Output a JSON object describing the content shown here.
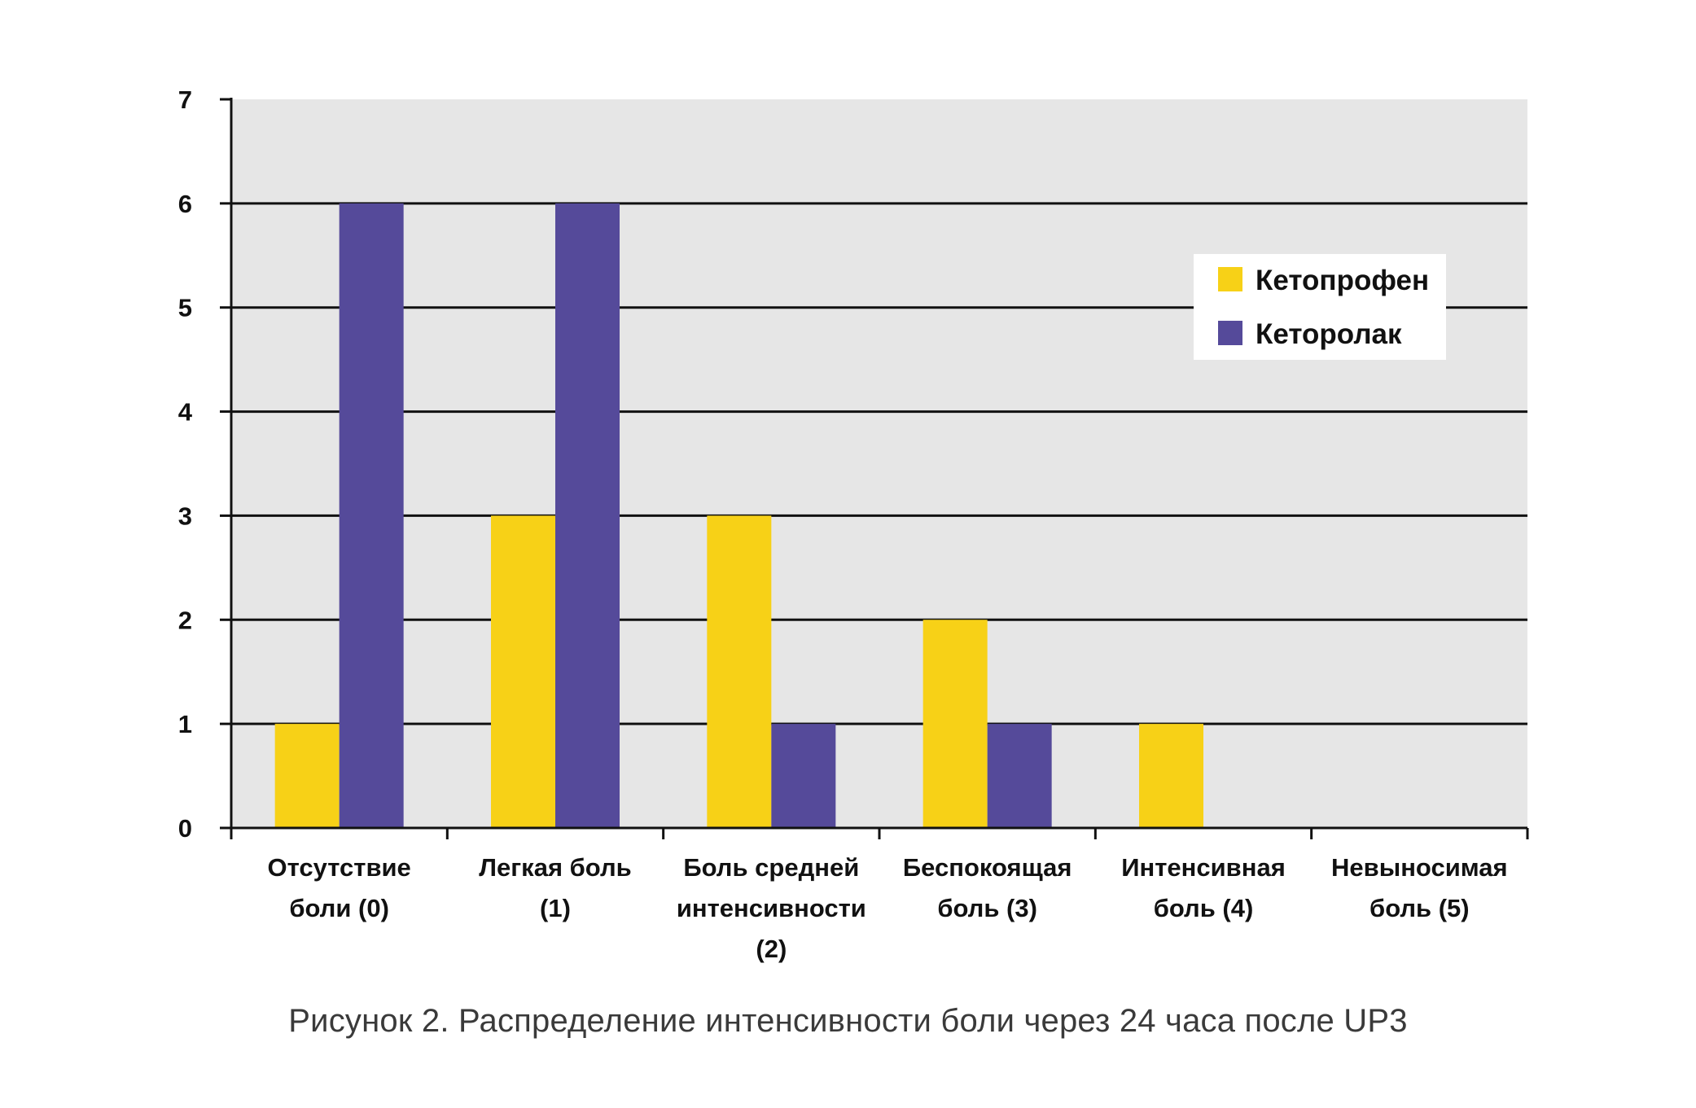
{
  "chart_data": {
    "type": "bar",
    "categories": [
      [
        "Отсутствие",
        "боли (0)"
      ],
      [
        "Легкая боль",
        "(1)"
      ],
      [
        "Боль средней",
        "интенсивности",
        "(2)"
      ],
      [
        "Беспокоящая",
        "боль (3)"
      ],
      [
        "Интенсивная",
        "боль (4)"
      ],
      [
        "Невыносимая",
        "боль (5)"
      ]
    ],
    "series": [
      {
        "name": "Кетопрофен",
        "color": "#f7d117",
        "values": [
          1,
          3,
          3,
          2,
          1,
          0
        ]
      },
      {
        "name": "Кеторолак",
        "color": "#554a9a",
        "values": [
          6,
          6,
          1,
          1,
          0,
          0
        ]
      }
    ],
    "ylim": [
      0,
      7
    ],
    "yticks": [
      0,
      1,
      2,
      3,
      4,
      5,
      6,
      7
    ],
    "grid": true,
    "legend_position": "top-right",
    "plot_background": "#e6e6e6"
  },
  "caption": "Рисунок 2. Распределение интенсивности боли через 24 часа после UP3"
}
